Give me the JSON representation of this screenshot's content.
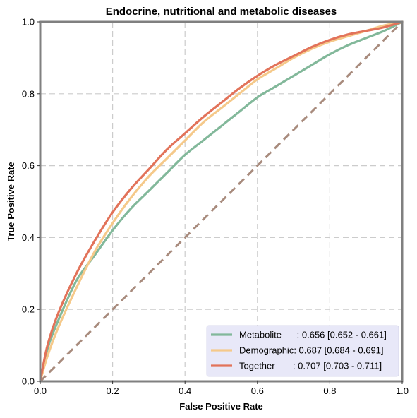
{
  "chart_data": {
    "type": "line",
    "title": "Endocrine, nutritional and metabolic diseases",
    "xlabel": "False Positive Rate",
    "ylabel": "True Positive Rate",
    "xlim": [
      0,
      1
    ],
    "ylim": [
      0,
      1
    ],
    "xticks": [
      "0.0",
      "0.2",
      "0.4",
      "0.6",
      "0.8",
      "1.0"
    ],
    "yticks": [
      "0.0",
      "0.2",
      "0.4",
      "0.6",
      "0.8",
      "1.0"
    ],
    "grid": true,
    "legend_position": "bottom-right",
    "series": [
      {
        "name": "Metabolite",
        "legend_label": "Metabolite      : 0.656 [0.652 - 0.661]",
        "color": "#82b89a",
        "x": [
          0,
          0.02,
          0.05,
          0.1,
          0.15,
          0.2,
          0.25,
          0.3,
          0.35,
          0.4,
          0.45,
          0.5,
          0.55,
          0.6,
          0.65,
          0.7,
          0.75,
          0.8,
          0.85,
          0.9,
          0.95,
          1.0
        ],
        "y": [
          0,
          0.09,
          0.17,
          0.28,
          0.35,
          0.42,
          0.48,
          0.53,
          0.58,
          0.63,
          0.67,
          0.71,
          0.75,
          0.79,
          0.82,
          0.85,
          0.88,
          0.91,
          0.935,
          0.955,
          0.975,
          1.0
        ]
      },
      {
        "name": "Demographic",
        "legend_label": "Demographic: 0.687 [0.684 - 0.691]",
        "color": "#f5c98a",
        "x": [
          0,
          0.02,
          0.05,
          0.1,
          0.15,
          0.2,
          0.25,
          0.3,
          0.35,
          0.4,
          0.45,
          0.5,
          0.55,
          0.6,
          0.65,
          0.7,
          0.75,
          0.8,
          0.85,
          0.9,
          0.95,
          1.0
        ],
        "y": [
          0,
          0.07,
          0.15,
          0.26,
          0.36,
          0.44,
          0.51,
          0.57,
          0.62,
          0.67,
          0.72,
          0.76,
          0.8,
          0.84,
          0.87,
          0.9,
          0.925,
          0.945,
          0.96,
          0.975,
          0.99,
          1.0
        ]
      },
      {
        "name": "Together",
        "legend_label": "Together       : 0.707 [0.703 - 0.711]",
        "color": "#e2735a",
        "x": [
          0,
          0.02,
          0.05,
          0.1,
          0.15,
          0.2,
          0.25,
          0.3,
          0.35,
          0.4,
          0.45,
          0.5,
          0.55,
          0.6,
          0.65,
          0.7,
          0.75,
          0.8,
          0.85,
          0.9,
          0.95,
          1.0
        ],
        "y": [
          0,
          0.1,
          0.19,
          0.3,
          0.39,
          0.47,
          0.535,
          0.59,
          0.645,
          0.69,
          0.735,
          0.775,
          0.815,
          0.85,
          0.88,
          0.905,
          0.93,
          0.95,
          0.965,
          0.975,
          0.985,
          1.0
        ]
      }
    ],
    "reference_line": {
      "x": [
        0,
        1
      ],
      "y": [
        0,
        1
      ],
      "color": "#a88b7d",
      "style": "dashed"
    }
  },
  "colors": {
    "frame": "#808080",
    "grid": "#cccccc",
    "legend_background": "#e8e8f8"
  }
}
